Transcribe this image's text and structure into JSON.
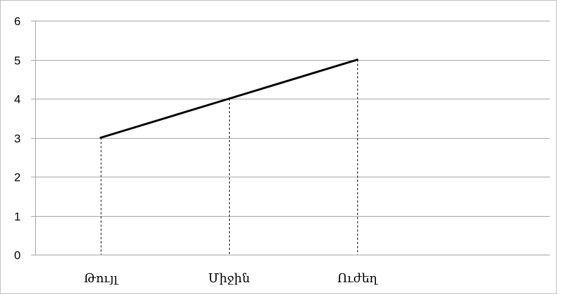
{
  "chart_data": {
    "type": "line",
    "categories": [
      "Թույլ",
      "Միջին",
      "Ուժեղ"
    ],
    "series": [
      {
        "values": [
          3,
          4,
          5
        ]
      }
    ],
    "ylim": [
      0,
      6
    ],
    "yticks": [
      0,
      1,
      2,
      3,
      4,
      5,
      6
    ],
    "grid": true,
    "drop_lines": true,
    "colors": {
      "line": "#000000",
      "grid": "#a6a6a6",
      "axis": "#a6a6a6",
      "drop_line": "#000000"
    }
  }
}
